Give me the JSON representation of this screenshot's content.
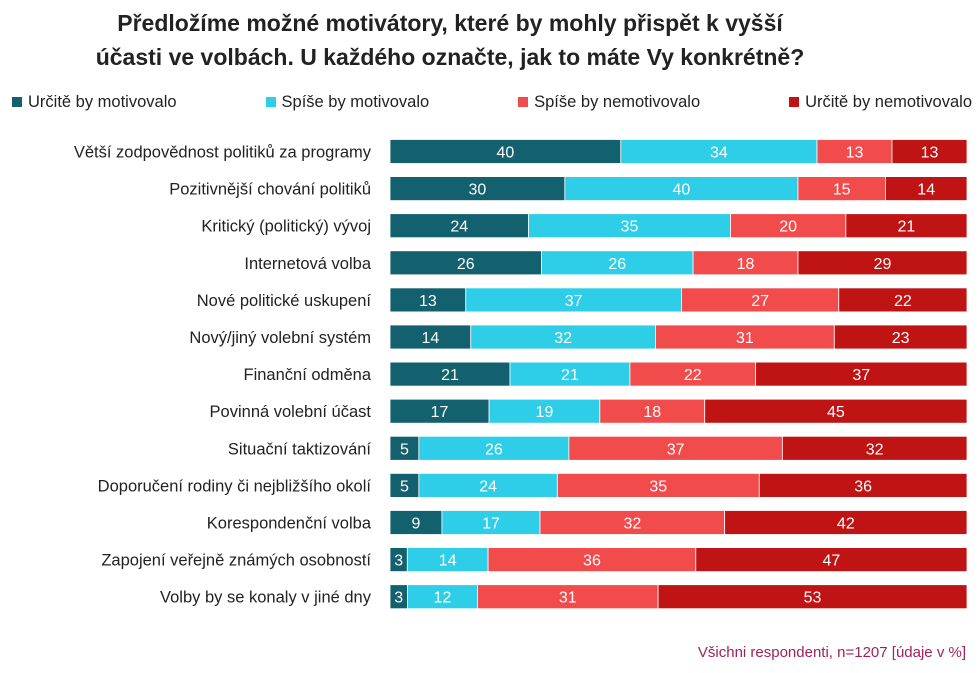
{
  "title_line1": "Předložíme možné motivátory, které by mohly přispět k vyšší",
  "title_line2": "účasti ve volbách. U každého označte, jak to máte Vy konkrétně?",
  "footnote": "Všichni respondenti, n=1207 [údaje v %]",
  "chart_data": {
    "type": "bar",
    "orientation": "horizontal",
    "stacked": true,
    "unit": "%",
    "title": "Předložíme možné motivátory, které by mohly přispět k vyšší účasti ve volbách. U každého označte, jak to máte Vy konkrétně?",
    "categories": [
      "Větší zodpovědnost politiků za programy",
      "Pozitivnější chování politiků",
      "Kritický (politický) vývoj",
      "Internetová volba",
      "Nové politické uskupení",
      "Nový/jiný volební systém",
      "Finanční odměna",
      "Povinná volební účast",
      "Situační taktizování",
      "Doporučení rodiny či nejbližšího okolí",
      "Korespondenční volba",
      "Zapojení veřejně známých osobností",
      "Volby by se konaly v jiné dny"
    ],
    "series": [
      {
        "name": "Určitě by motivovalo",
        "color": "#13606f",
        "values": [
          40,
          30,
          24,
          26,
          13,
          14,
          21,
          17,
          5,
          5,
          9,
          3,
          3
        ]
      },
      {
        "name": "Spíše by motivovalo",
        "color": "#2ecde8",
        "values": [
          34,
          40,
          35,
          26,
          37,
          32,
          21,
          19,
          26,
          24,
          17,
          14,
          12
        ]
      },
      {
        "name": "Spíše by nemotivovalo",
        "color": "#f24b4b",
        "values": [
          13,
          15,
          20,
          18,
          27,
          31,
          22,
          18,
          37,
          35,
          32,
          36,
          31
        ]
      },
      {
        "name": "Určitě by nemotivovalo",
        "color": "#c01313",
        "values": [
          13,
          14,
          21,
          29,
          22,
          23,
          37,
          45,
          32,
          36,
          42,
          47,
          53
        ]
      }
    ],
    "legend_position": "top",
    "grid": false
  }
}
